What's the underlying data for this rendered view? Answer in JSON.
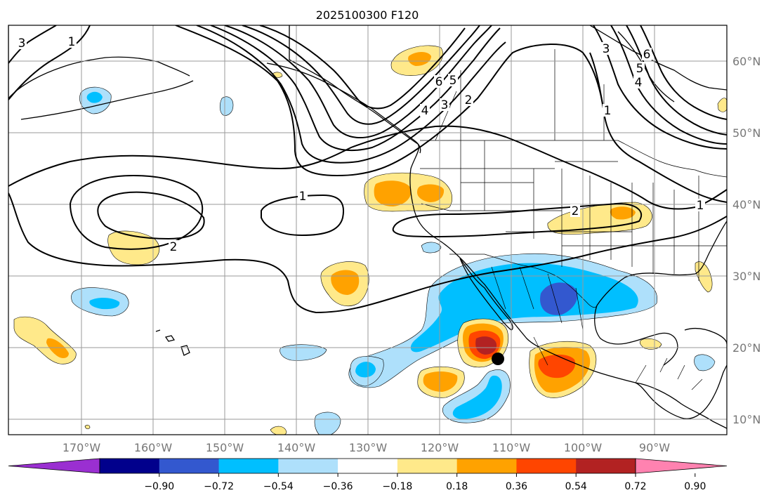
{
  "title": "2025100300 F120",
  "map": {
    "lon_labels": [
      "170°W",
      "160°W",
      "150°W",
      "140°W",
      "130°W",
      "120°W",
      "110°W",
      "100°W",
      "90°W"
    ],
    "lat_labels": [
      "60°N",
      "50°N",
      "40°N",
      "30°N",
      "20°N",
      "10°N"
    ],
    "contour_labels": [
      "3",
      "1",
      "6",
      "5",
      "4",
      "3",
      "2",
      "6",
      "5",
      "4",
      "3",
      "1",
      "1",
      "2",
      "2",
      "1"
    ],
    "marker": "storm-center-dot"
  },
  "colorbar": {
    "ticks": [
      "−0.90",
      "−0.72",
      "−0.54",
      "−0.36",
      "−0.18",
      "0.18",
      "0.36",
      "0.54",
      "0.72",
      "0.90"
    ],
    "colors": [
      "#9a2fd1",
      "#01008c",
      "#3358cf",
      "#00bfff",
      "#aee0fb",
      "#ffffff",
      "#ffe98a",
      "#ffa200",
      "#ff4500",
      "#b22222",
      "#ff82b0"
    ]
  },
  "anomaly_colors": {
    "light_blue": "#aee0fb",
    "blue": "#00bfff",
    "dark_blue": "#3358cf",
    "yellow": "#ffe98a",
    "orange": "#ffa200",
    "red": "#ff4500",
    "dark_red": "#b22222"
  }
}
